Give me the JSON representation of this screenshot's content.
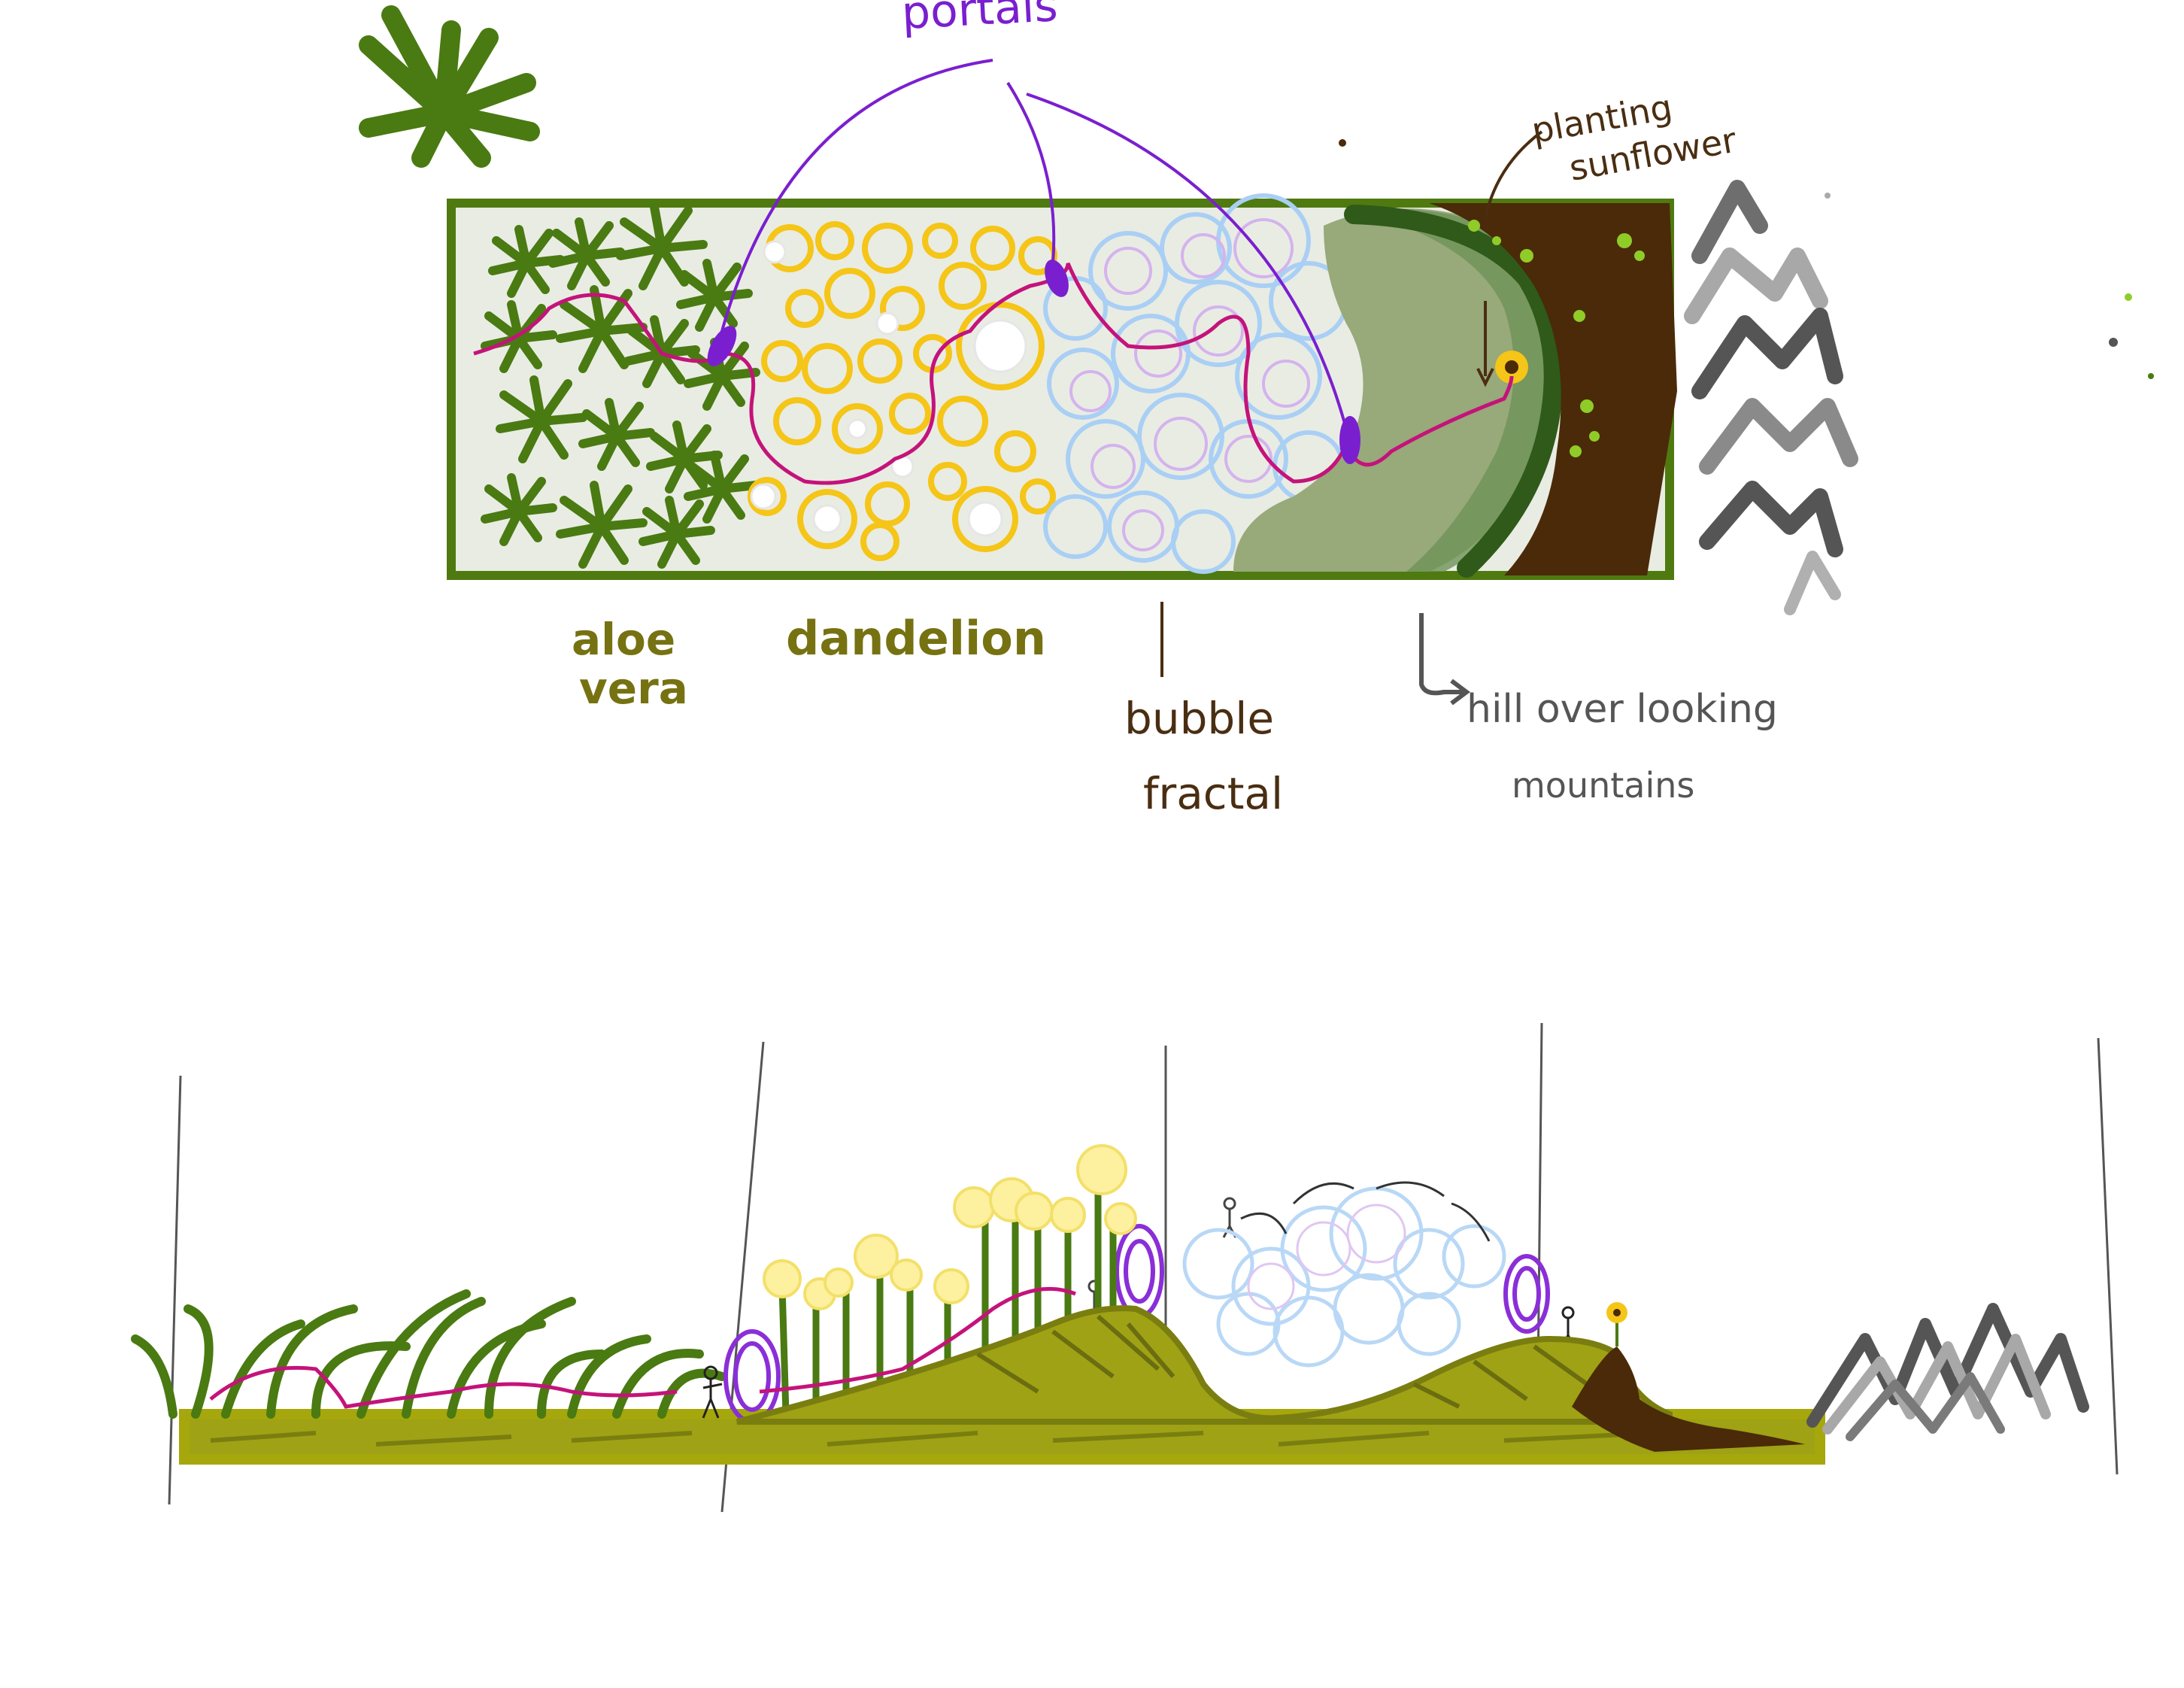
{
  "labels": {
    "portals": "portals",
    "planting_sunflower_1": "planting",
    "planting_sunflower_2": "sunflower",
    "aloe_vera_1": "aloe",
    "aloe_vera_2": "vera",
    "dandelion": "dandelion",
    "bubble_fractal_1": "bubble",
    "bubble_fractal_2": "fractal",
    "hill_overlooking_1": "hill over looking",
    "hill_overlooking_2": "mountains"
  },
  "colors": {
    "aloe": "#4a7a12",
    "frame": "#4f7a10",
    "panel": "#e9ece3",
    "dandelion": "#f5c518",
    "bubble": "#a9cff5",
    "bubble_inner": "#d4b3ee",
    "hill_light": "#98a97a",
    "hill_dark": "#2f5a1a",
    "soil": "#4a2a08",
    "mountain": "#6e6e6e",
    "path": "#c4137a",
    "portal": "#7a1fcf",
    "olive_text": "#767212",
    "brown_text": "#4a2e12",
    "ground": "#9ea214"
  }
}
